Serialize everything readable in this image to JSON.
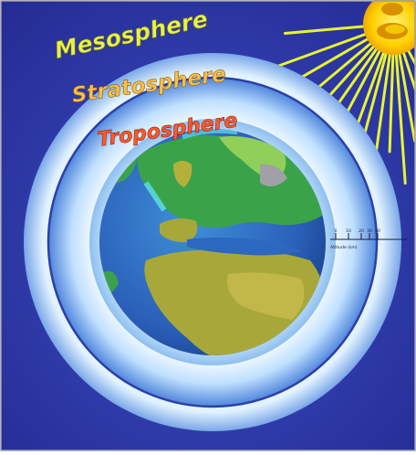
{
  "layers": {
    "mesosphere": "Mesosphere",
    "stratosphere": "Stratosphere",
    "troposphere": "Troposphere"
  },
  "scale": {
    "ticks": [
      "0",
      "10",
      "20",
      "30",
      "40"
    ],
    "label": "Altitude (km)"
  },
  "colors": {
    "background": "#2b2f9e",
    "mesosphere_text": "#e8f24a",
    "stratosphere_text": "#f5c04a",
    "troposphere_text": "#ff5a2a",
    "ocean": "#2f6fc0",
    "land_green": "#3aa34a",
    "land_olive": "#a8a83a",
    "sun": "#ffd400"
  }
}
